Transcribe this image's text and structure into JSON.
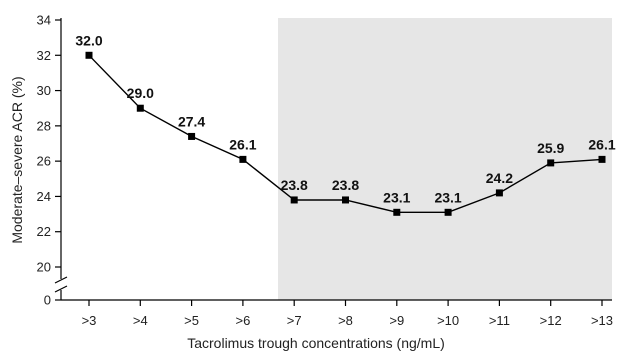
{
  "chart_data": {
    "type": "line",
    "xlabel": "Tacrolimus trough concentrations (ng/mL)",
    "ylabel": "Moderate–severe ACR (%)",
    "categories": [
      ">3",
      ">4",
      ">5",
      ">6",
      ">7",
      ">8",
      ">9",
      ">10",
      ">11",
      ">12",
      ">13"
    ],
    "series": [
      {
        "values": [
          32.0,
          29.0,
          27.4,
          26.1,
          23.8,
          23.8,
          23.1,
          23.1,
          24.2,
          25.9,
          26.1
        ]
      }
    ],
    "data_labels": [
      "32.0",
      "29.0",
      "27.4",
      "26.1",
      "23.8",
      "23.8",
      "23.1",
      "23.1",
      "24.2",
      "25.9",
      "26.1"
    ],
    "yticks": [
      "0",
      "20",
      "22",
      "24",
      "26",
      "28",
      "30",
      "32",
      "34"
    ],
    "ylim": [
      19,
      34
    ],
    "y_axis_break": true,
    "shaded_region_from_category": ">7",
    "grid": false,
    "colors": {
      "shade": "#e6e6e6",
      "line": "#000000"
    }
  }
}
